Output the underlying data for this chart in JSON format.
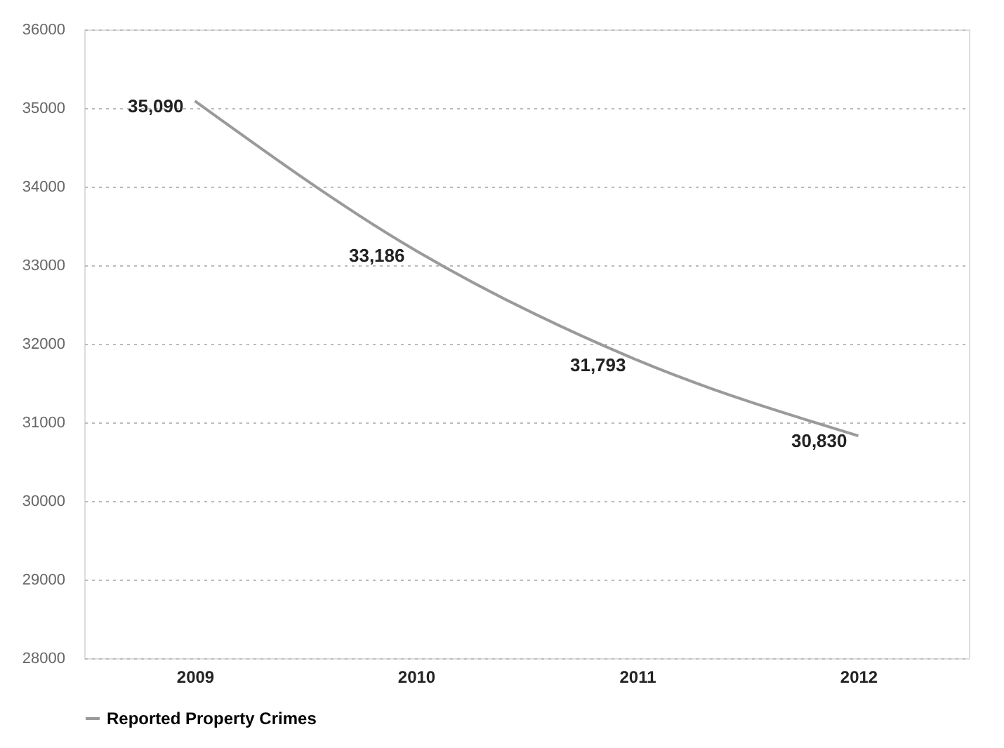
{
  "chart_data": {
    "type": "line",
    "categories": [
      "2009",
      "2010",
      "2011",
      "2012"
    ],
    "series": [
      {
        "name": "Reported Property Crimes",
        "color": "#9a9a9a",
        "values": [
          35090,
          33186,
          31793,
          30830
        ]
      }
    ],
    "value_labels": [
      "35,090",
      "33,186",
      "31,793",
      "30,830"
    ],
    "ylim": [
      28000,
      36000
    ],
    "yticks": [
      28000,
      29000,
      30000,
      31000,
      32000,
      33000,
      34000,
      35000,
      36000
    ],
    "grid": "y",
    "legend": "bottom",
    "marker": "none",
    "line_style": "solid"
  }
}
